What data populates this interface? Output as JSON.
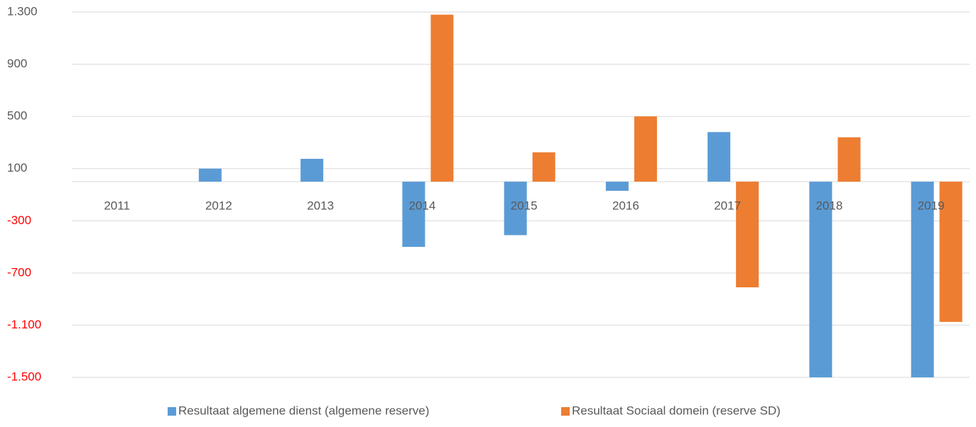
{
  "chart_data": {
    "type": "bar",
    "categories": [
      "2011",
      "2012",
      "2013",
      "2014",
      "2015",
      "2016",
      "2017",
      "2018",
      "2019"
    ],
    "series": [
      {
        "name": "Resultaat algemene dienst (algemene reserve)",
        "color": "#5b9bd5",
        "values": [
          0,
          100,
          175,
          -500,
          -410,
          -70,
          380,
          -1500,
          -1500
        ]
      },
      {
        "name": "Resultaat Sociaal domein (reserve SD)",
        "color": "#ed7d31",
        "values": [
          0,
          0,
          0,
          1280,
          225,
          500,
          -810,
          340,
          -1075
        ]
      }
    ],
    "ylim": [
      -1500,
      1300
    ],
    "yticks": [
      {
        "value": 1300,
        "label": "1.300"
      },
      900,
      500,
      100,
      -300,
      -700,
      {
        "value": -1100,
        "label": "-1.100"
      },
      {
        "value": -1500,
        "label": "-1.500"
      }
    ],
    "negative_tick_color": "#ff0000",
    "grid": true,
    "legend": "bottom"
  }
}
